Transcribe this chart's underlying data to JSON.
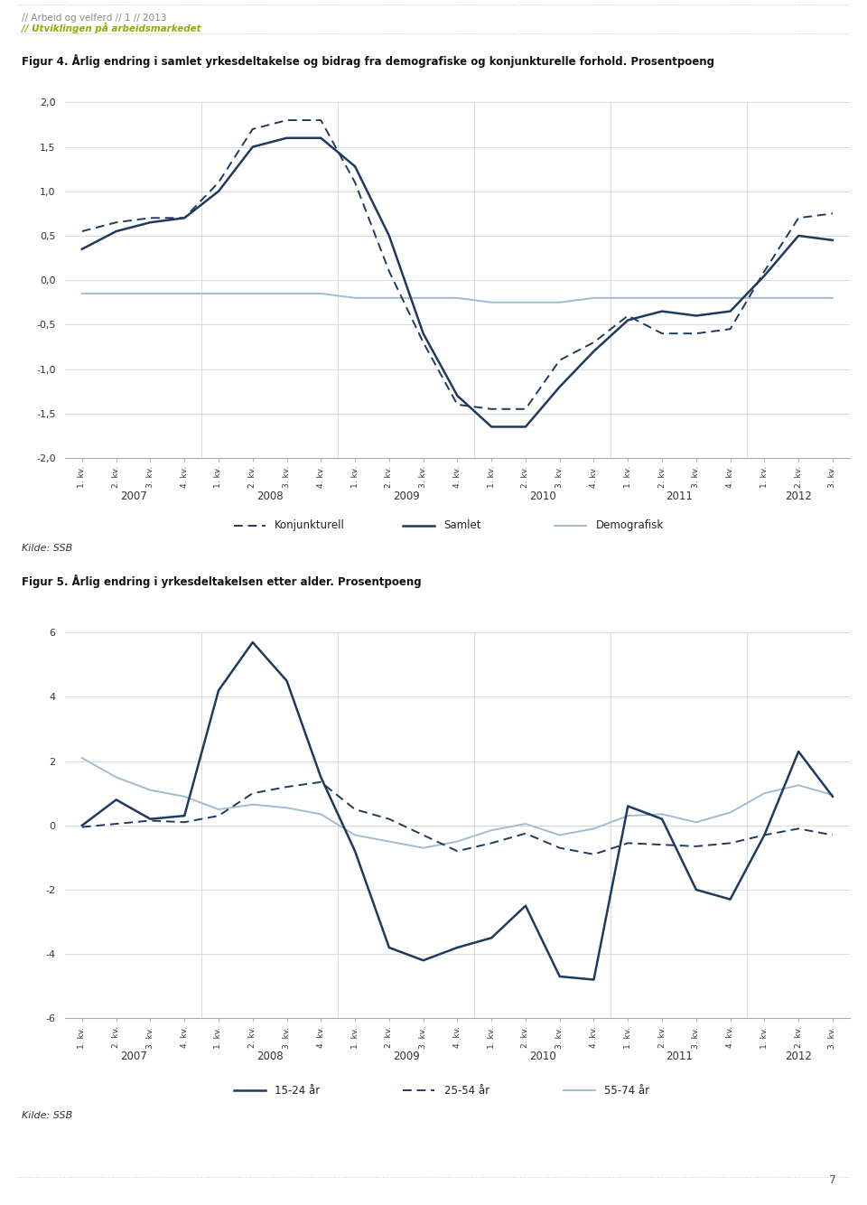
{
  "header_line1": "// Arbeid og velferd // 1 // 2013",
  "header_line2": "// Utviklingen på arbeidsmarkedet",
  "fig4_title": "Figur 4. Årlig endring i samlet yrkesdeltakelse og bidrag fra demografiske og konjunkturelle forhold. Prosentpoeng",
  "fig5_title": "Figur 5. Årlig endring i yrkesdeltakelsen etter alder. Prosentpoeng",
  "kilde": "Kilde: SSB",
  "page_number": "7",
  "x_labels": [
    "1. kv.",
    "2. kv.",
    "3. kv.",
    "4. kv.",
    "1. kv.",
    "2. kv.",
    "3. kv.",
    "4. kv.",
    "1. kv.",
    "2. kv.",
    "3. kv.",
    "4. kv.",
    "1. kv.",
    "2. kv.",
    "3. kv.",
    "4. kv.",
    "1. kv.",
    "2. kv.",
    "3. kv.",
    "4. kv.",
    "1. kv.",
    "2. kv.",
    "3. kv."
  ],
  "year_labels": [
    "2007",
    "2008",
    "2009",
    "2010",
    "2011",
    "2012"
  ],
  "year_tick_positions": [
    1.5,
    5.5,
    9.5,
    13.5,
    17.5,
    21.0
  ],
  "fig4_ylim": [
    -2.0,
    2.0
  ],
  "fig4_yticks": [
    -2.0,
    -1.5,
    -1.0,
    -0.5,
    0.0,
    0.5,
    1.0,
    1.5,
    2.0
  ],
  "fig4_samlet": [
    0.35,
    0.55,
    0.65,
    0.7,
    1.0,
    1.5,
    1.6,
    1.6,
    1.28,
    0.5,
    -0.6,
    -1.3,
    -1.65,
    -1.65,
    -1.2,
    -0.8,
    -0.45,
    -0.35,
    -0.4,
    -0.35,
    0.05,
    0.5,
    0.45
  ],
  "fig4_konjunkturell": [
    0.55,
    0.65,
    0.7,
    0.7,
    1.1,
    1.7,
    1.8,
    1.8,
    1.1,
    0.1,
    -0.7,
    -1.4,
    -1.45,
    -1.45,
    -0.9,
    -0.7,
    -0.4,
    -0.6,
    -0.6,
    -0.55,
    0.1,
    0.7,
    0.75
  ],
  "fig4_demografisk": [
    -0.15,
    -0.15,
    -0.15,
    -0.15,
    -0.15,
    -0.15,
    -0.15,
    -0.15,
    -0.2,
    -0.2,
    -0.2,
    -0.2,
    -0.25,
    -0.25,
    -0.25,
    -0.2,
    -0.2,
    -0.2,
    -0.2,
    -0.2,
    -0.2,
    -0.2,
    -0.2
  ],
  "fig4_color_samlet": "#1e3a5f",
  "fig4_color_konjunkturell": "#1e3a5f",
  "fig4_color_demografisk": "#a0bdd0",
  "fig5_ylim": [
    -6.0,
    6.0
  ],
  "fig5_yticks": [
    -6,
    -4,
    -2,
    0,
    2,
    4,
    6
  ],
  "fig5_15_24": [
    0.0,
    0.8,
    0.2,
    0.3,
    4.2,
    5.7,
    4.5,
    1.5,
    -0.8,
    -3.8,
    -4.2,
    -3.8,
    -3.5,
    -2.5,
    -4.7,
    -4.8,
    0.6,
    0.2,
    -2.0,
    -2.3,
    -0.3,
    2.3,
    0.9
  ],
  "fig5_25_54": [
    -0.05,
    0.05,
    0.15,
    0.1,
    0.3,
    1.0,
    1.2,
    1.35,
    0.5,
    0.2,
    -0.3,
    -0.8,
    -0.55,
    -0.25,
    -0.7,
    -0.9,
    -0.55,
    -0.6,
    -0.65,
    -0.55,
    -0.3,
    -0.1,
    -0.3
  ],
  "fig5_55_74": [
    2.1,
    1.5,
    1.1,
    0.9,
    0.5,
    0.65,
    0.55,
    0.35,
    -0.3,
    -0.5,
    -0.7,
    -0.5,
    -0.15,
    0.05,
    -0.3,
    -0.1,
    0.3,
    0.35,
    0.1,
    0.4,
    1.0,
    1.25,
    0.95
  ],
  "fig5_color_15_24": "#1e3a5f",
  "fig5_color_25_54": "#1e3a5f",
  "fig5_color_55_74": "#a0bdd0",
  "background_color": "#ffffff",
  "header_color_line1": "#888888",
  "header_color_line2": "#8db000",
  "grid_color": "#d5d5d5",
  "spine_color": "#aaaaaa",
  "tick_label_color": "#333333"
}
